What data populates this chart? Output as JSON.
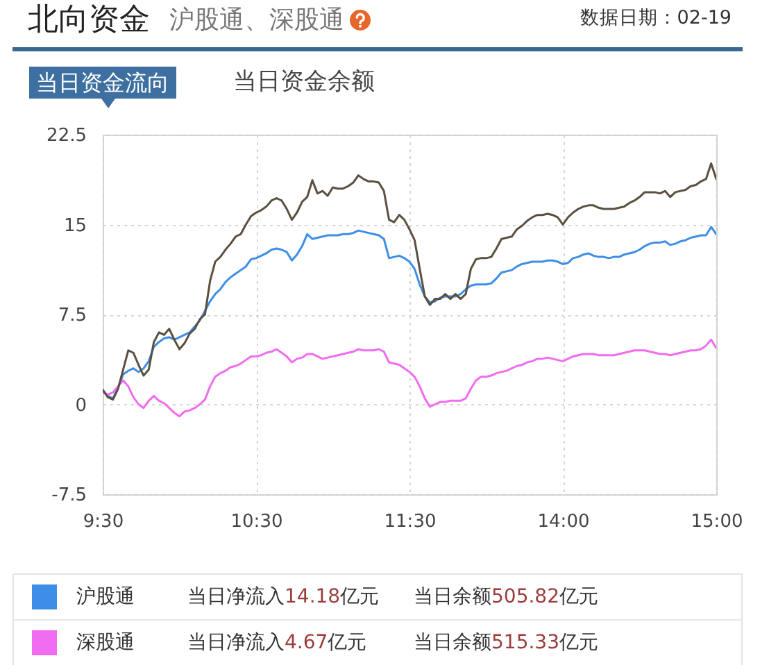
{
  "chart_data": {
    "type": "line",
    "title": "北向资金",
    "subtitle": "沪股通、深股通",
    "annotations": [
      "数据日期：02-19",
      "当日资金流向",
      "当日资金余额",
      "当日净流入14.18亿元",
      "当日余额505.82亿元",
      "当日净流入4.67亿元",
      "当日余额515.33亿元"
    ],
    "categories": [
      "9:30",
      null,
      null,
      null,
      null,
      null,
      null,
      null,
      null,
      null,
      null,
      null,
      null,
      null,
      null,
      null,
      null,
      null,
      null,
      null,
      null,
      null,
      null,
      null,
      null,
      null,
      null,
      null,
      null,
      null,
      "10:30",
      null,
      null,
      null,
      null,
      null,
      null,
      null,
      null,
      null,
      null,
      null,
      null,
      null,
      null,
      null,
      null,
      null,
      null,
      null,
      null,
      null,
      null,
      null,
      null,
      null,
      null,
      null,
      null,
      null,
      "11:30",
      null,
      null,
      null,
      null,
      null,
      null,
      null,
      null,
      null,
      null,
      null,
      null,
      null,
      null,
      null,
      null,
      null,
      null,
      null,
      null,
      null,
      null,
      null,
      null,
      null,
      null,
      null,
      null,
      null,
      "14:00",
      null,
      null,
      null,
      null,
      null,
      null,
      null,
      null,
      null,
      null,
      null,
      null,
      null,
      null,
      null,
      null,
      null,
      null,
      null,
      null,
      null,
      null,
      null,
      null,
      null,
      null,
      null,
      null,
      null,
      "15:00"
    ],
    "ylim": [
      -7.5,
      22.5
    ],
    "yticks": [
      -7.5,
      0,
      7.5,
      15,
      22.5
    ],
    "grid": true,
    "legend": "bottom",
    "series": [
      {
        "name": "沪股通",
        "color": "#3d8ee6",
        "values": [
          1.2,
          0.7,
          0.5,
          1.4,
          2.5,
          2.8,
          3.0,
          2.7,
          3.0,
          3.6,
          4.8,
          5.2,
          5.5,
          5.6,
          5.4,
          5.6,
          5.8,
          6.0,
          6.5,
          7.0,
          7.8,
          8.6,
          9.2,
          9.6,
          10.2,
          10.6,
          10.9,
          11.2,
          11.5,
          12.1,
          12.2,
          12.4,
          12.6,
          12.9,
          13.0,
          12.9,
          12.7,
          12.0,
          12.5,
          13.2,
          14.2,
          13.8,
          13.9,
          14.0,
          14.1,
          14.1,
          14.1,
          14.2,
          14.2,
          14.3,
          14.5,
          14.4,
          14.3,
          14.2,
          14.1,
          13.8,
          12.2,
          12.3,
          12.4,
          12.2,
          11.9,
          11.3,
          10.0,
          9.0,
          8.5,
          8.6,
          8.9,
          9.0,
          9.0,
          9.0,
          9.2,
          9.6,
          9.9,
          10.0,
          10.0,
          10.0,
          10.1,
          10.5,
          11.0,
          11.1,
          11.2,
          11.5,
          11.7,
          11.8,
          11.9,
          11.9,
          11.9,
          12.0,
          12.0,
          11.9,
          11.7,
          11.8,
          12.2,
          12.3,
          12.5,
          12.6,
          12.4,
          12.3,
          12.3,
          12.2,
          12.3,
          12.3,
          12.5,
          12.6,
          12.7,
          12.9,
          13.2,
          13.4,
          13.5,
          13.5,
          13.6,
          13.3,
          13.4,
          13.6,
          13.7,
          13.9,
          14.0,
          14.1,
          14.1,
          14.8,
          14.2
        ]
      },
      {
        "name": "深股通",
        "color": "#f06cf0",
        "values": [
          1.0,
          0.8,
          1.0,
          1.5,
          2.0,
          1.5,
          0.6,
          0.0,
          -0.3,
          0.3,
          0.7,
          0.3,
          0.1,
          -0.3,
          -0.7,
          -1.0,
          -0.6,
          -0.5,
          -0.3,
          0.0,
          0.4,
          1.5,
          2.3,
          2.6,
          2.8,
          3.1,
          3.2,
          3.4,
          3.7,
          4.0,
          4.0,
          4.1,
          4.3,
          4.4,
          4.6,
          4.3,
          4.0,
          3.5,
          3.8,
          3.9,
          4.2,
          4.2,
          4.0,
          3.8,
          3.9,
          4.0,
          4.1,
          4.2,
          4.3,
          4.4,
          4.6,
          4.5,
          4.5,
          4.5,
          4.6,
          4.4,
          3.5,
          3.4,
          3.3,
          3.0,
          2.7,
          2.3,
          1.5,
          0.5,
          -0.2,
          0.0,
          0.2,
          0.2,
          0.3,
          0.3,
          0.3,
          0.5,
          1.3,
          2.0,
          2.3,
          2.3,
          2.4,
          2.6,
          2.7,
          2.8,
          3.0,
          3.2,
          3.3,
          3.5,
          3.6,
          3.8,
          3.8,
          3.9,
          3.8,
          3.7,
          3.6,
          3.8,
          4.0,
          4.1,
          4.2,
          4.2,
          4.2,
          4.1,
          4.1,
          4.1,
          4.1,
          4.2,
          4.3,
          4.4,
          4.5,
          4.5,
          4.5,
          4.4,
          4.3,
          4.2,
          4.2,
          4.1,
          4.2,
          4.3,
          4.4,
          4.5,
          4.5,
          4.6,
          4.9,
          5.4,
          4.7
        ]
      },
      {
        "color": "#5b4f3f",
        "values": [
          1.2,
          0.6,
          0.4,
          1.3,
          2.9,
          4.5,
          4.3,
          3.3,
          2.4,
          2.9,
          5.2,
          6.0,
          5.8,
          6.3,
          5.4,
          4.6,
          5.1,
          5.9,
          6.3,
          7.1,
          7.5,
          10.3,
          11.9,
          12.3,
          12.9,
          13.4,
          14.0,
          14.2,
          15.0,
          15.7,
          16.0,
          16.2,
          16.5,
          17.0,
          17.2,
          17.0,
          16.3,
          15.4,
          16.0,
          16.9,
          17.3,
          18.7,
          17.6,
          17.8,
          17.4,
          18.1,
          18.0,
          18.0,
          18.2,
          18.5,
          19.1,
          18.8,
          18.6,
          18.6,
          18.5,
          17.8,
          15.4,
          15.2,
          15.8,
          15.4,
          14.6,
          13.7,
          11.3,
          9.0,
          8.3,
          8.8,
          8.8,
          9.2,
          8.8,
          9.2,
          8.8,
          9.2,
          11.3,
          12.1,
          12.2,
          12.2,
          12.3,
          13.0,
          13.8,
          13.9,
          14.0,
          14.6,
          14.9,
          15.3,
          15.6,
          15.8,
          15.8,
          15.9,
          15.8,
          15.6,
          15.0,
          15.6,
          16.0,
          16.3,
          16.5,
          16.6,
          16.6,
          16.4,
          16.3,
          16.3,
          16.3,
          16.4,
          16.5,
          16.8,
          17.0,
          17.3,
          17.7,
          17.7,
          17.7,
          17.6,
          17.8,
          17.3,
          17.7,
          17.8,
          17.9,
          18.2,
          18.3,
          18.6,
          18.8,
          20.1,
          18.8
        ]
      }
    ]
  }
}
